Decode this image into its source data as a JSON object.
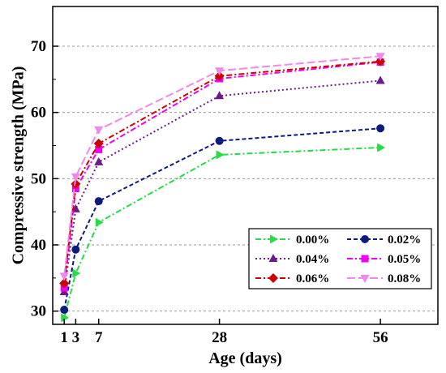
{
  "chart_data": {
    "type": "line",
    "xlabel": "Age (days)",
    "ylabel": "Compressive strength (MPa)",
    "x": [
      1,
      3,
      7,
      28,
      56
    ],
    "x_ticks": [
      1,
      3,
      7,
      28,
      56
    ],
    "y_ticks": [
      30,
      40,
      50,
      60,
      70
    ],
    "xlim": [
      -1,
      66
    ],
    "ylim": [
      28,
      76
    ],
    "grid": "horizontal dashed",
    "legend_position": "bottom-right",
    "series": [
      {
        "name": "0.00%",
        "color": "#22dd44",
        "marker": "triangle-right",
        "dash": "dash-dot",
        "values": [
          29.0,
          35.7,
          43.4,
          53.6,
          54.7
        ]
      },
      {
        "name": "0.02%",
        "color": "#0d1a80",
        "marker": "circle",
        "dash": "dash",
        "values": [
          30.2,
          39.3,
          46.6,
          55.7,
          57.6
        ]
      },
      {
        "name": "0.04%",
        "color": "#6a1a8a",
        "marker": "triangle-up",
        "dash": "dot",
        "values": [
          32.9,
          45.4,
          52.5,
          62.5,
          64.8
        ]
      },
      {
        "name": "0.05%",
        "color": "#f000f0",
        "marker": "square",
        "dash": "dash-dot",
        "values": [
          33.5,
          48.5,
          54.4,
          65.1,
          67.6
        ]
      },
      {
        "name": "0.06%",
        "color": "#cc0000",
        "marker": "diamond",
        "dash": "dash-dot",
        "values": [
          34.2,
          49.2,
          55.3,
          65.5,
          67.7
        ]
      },
      {
        "name": "0.08%",
        "color": "#ee88ee",
        "marker": "triangle-down",
        "dash": "long-dash",
        "values": [
          35.3,
          50.3,
          57.4,
          66.3,
          68.5
        ]
      }
    ]
  }
}
